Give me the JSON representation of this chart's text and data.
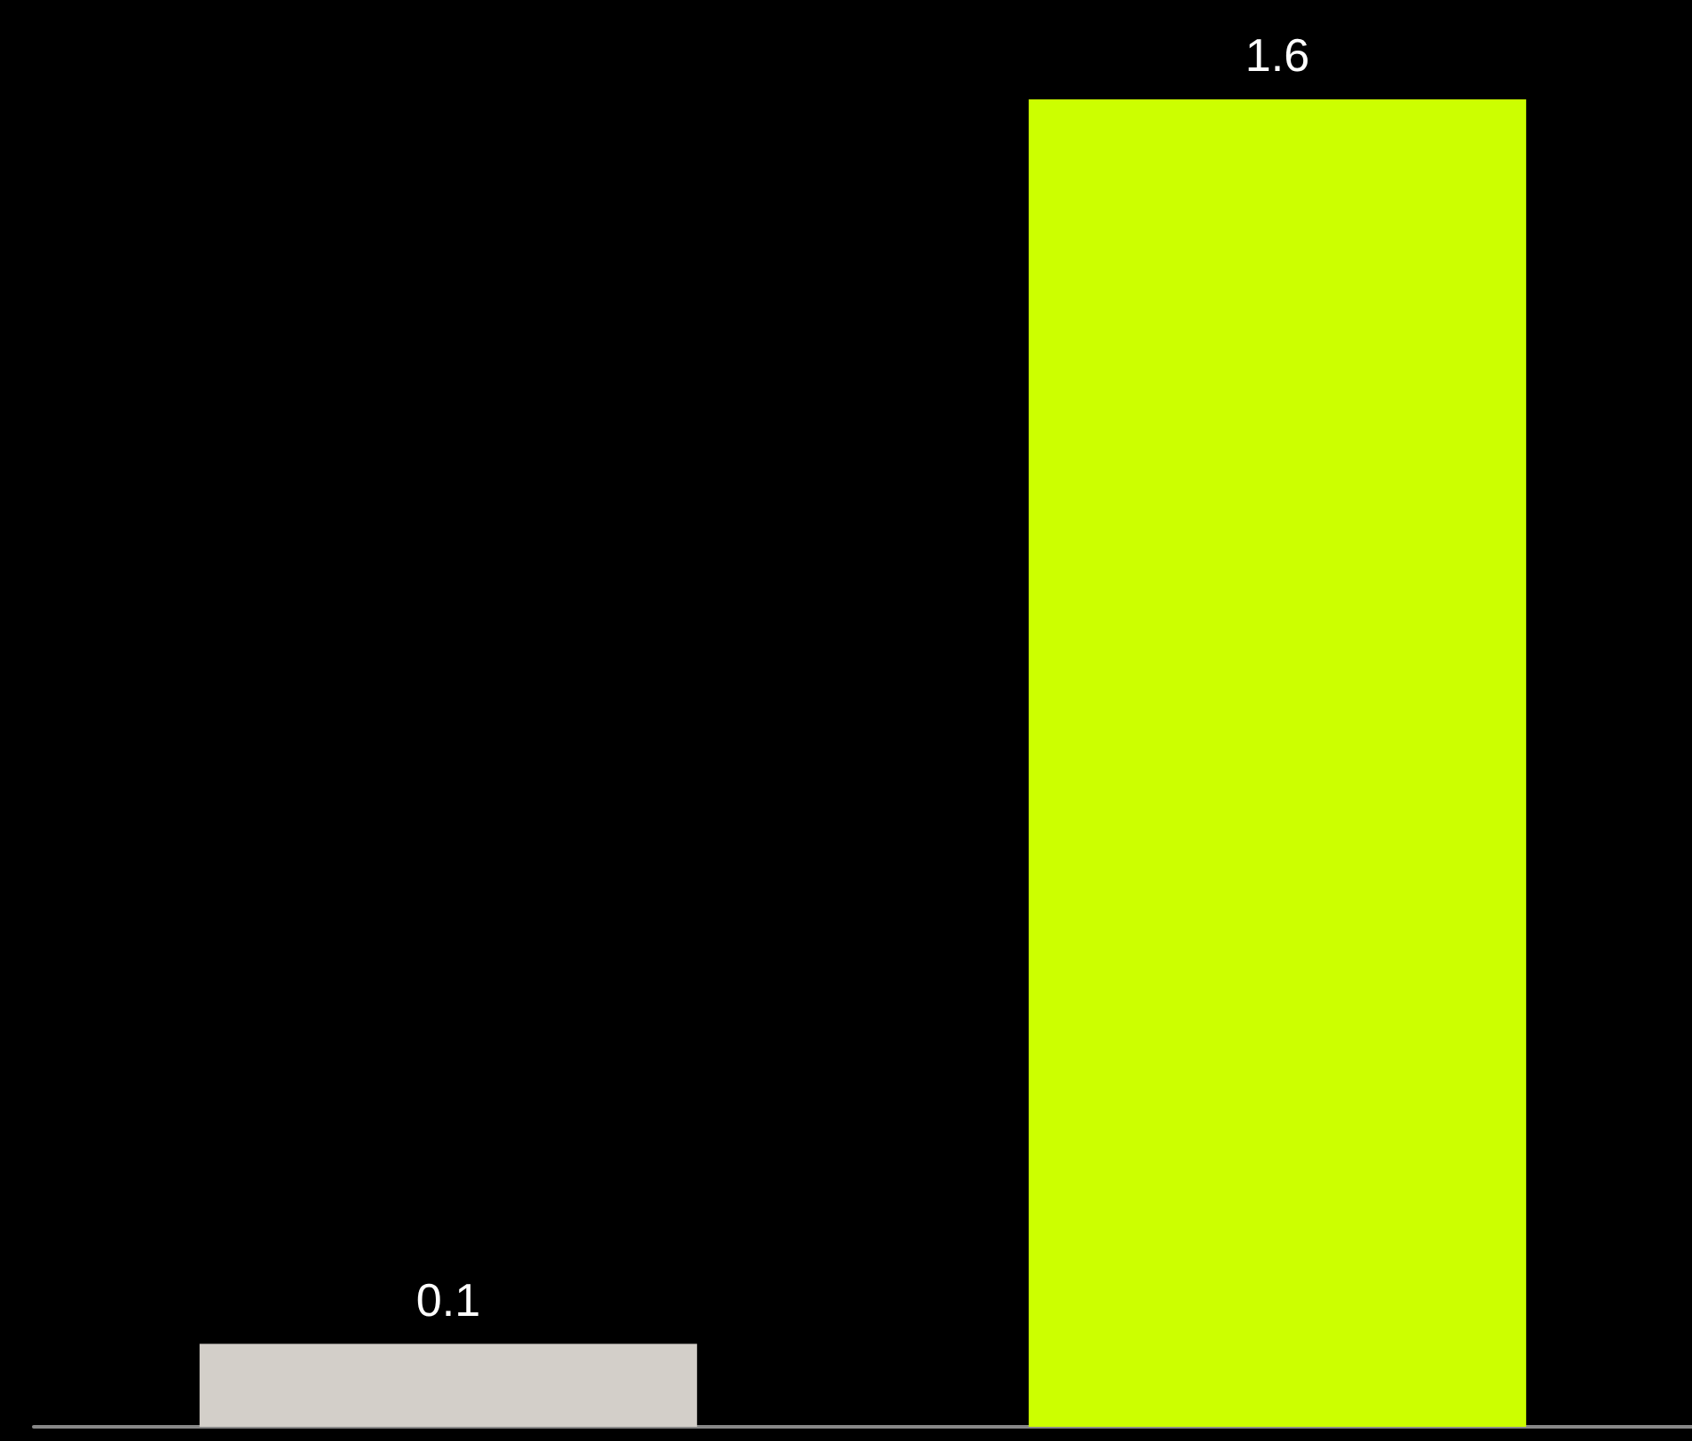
{
  "chart_data": {
    "type": "bar",
    "categories": [
      null,
      null
    ],
    "values": [
      0.1,
      1.6
    ],
    "colors": [
      "#d3cfc9",
      "#ccff00"
    ],
    "data_labels": true
  }
}
